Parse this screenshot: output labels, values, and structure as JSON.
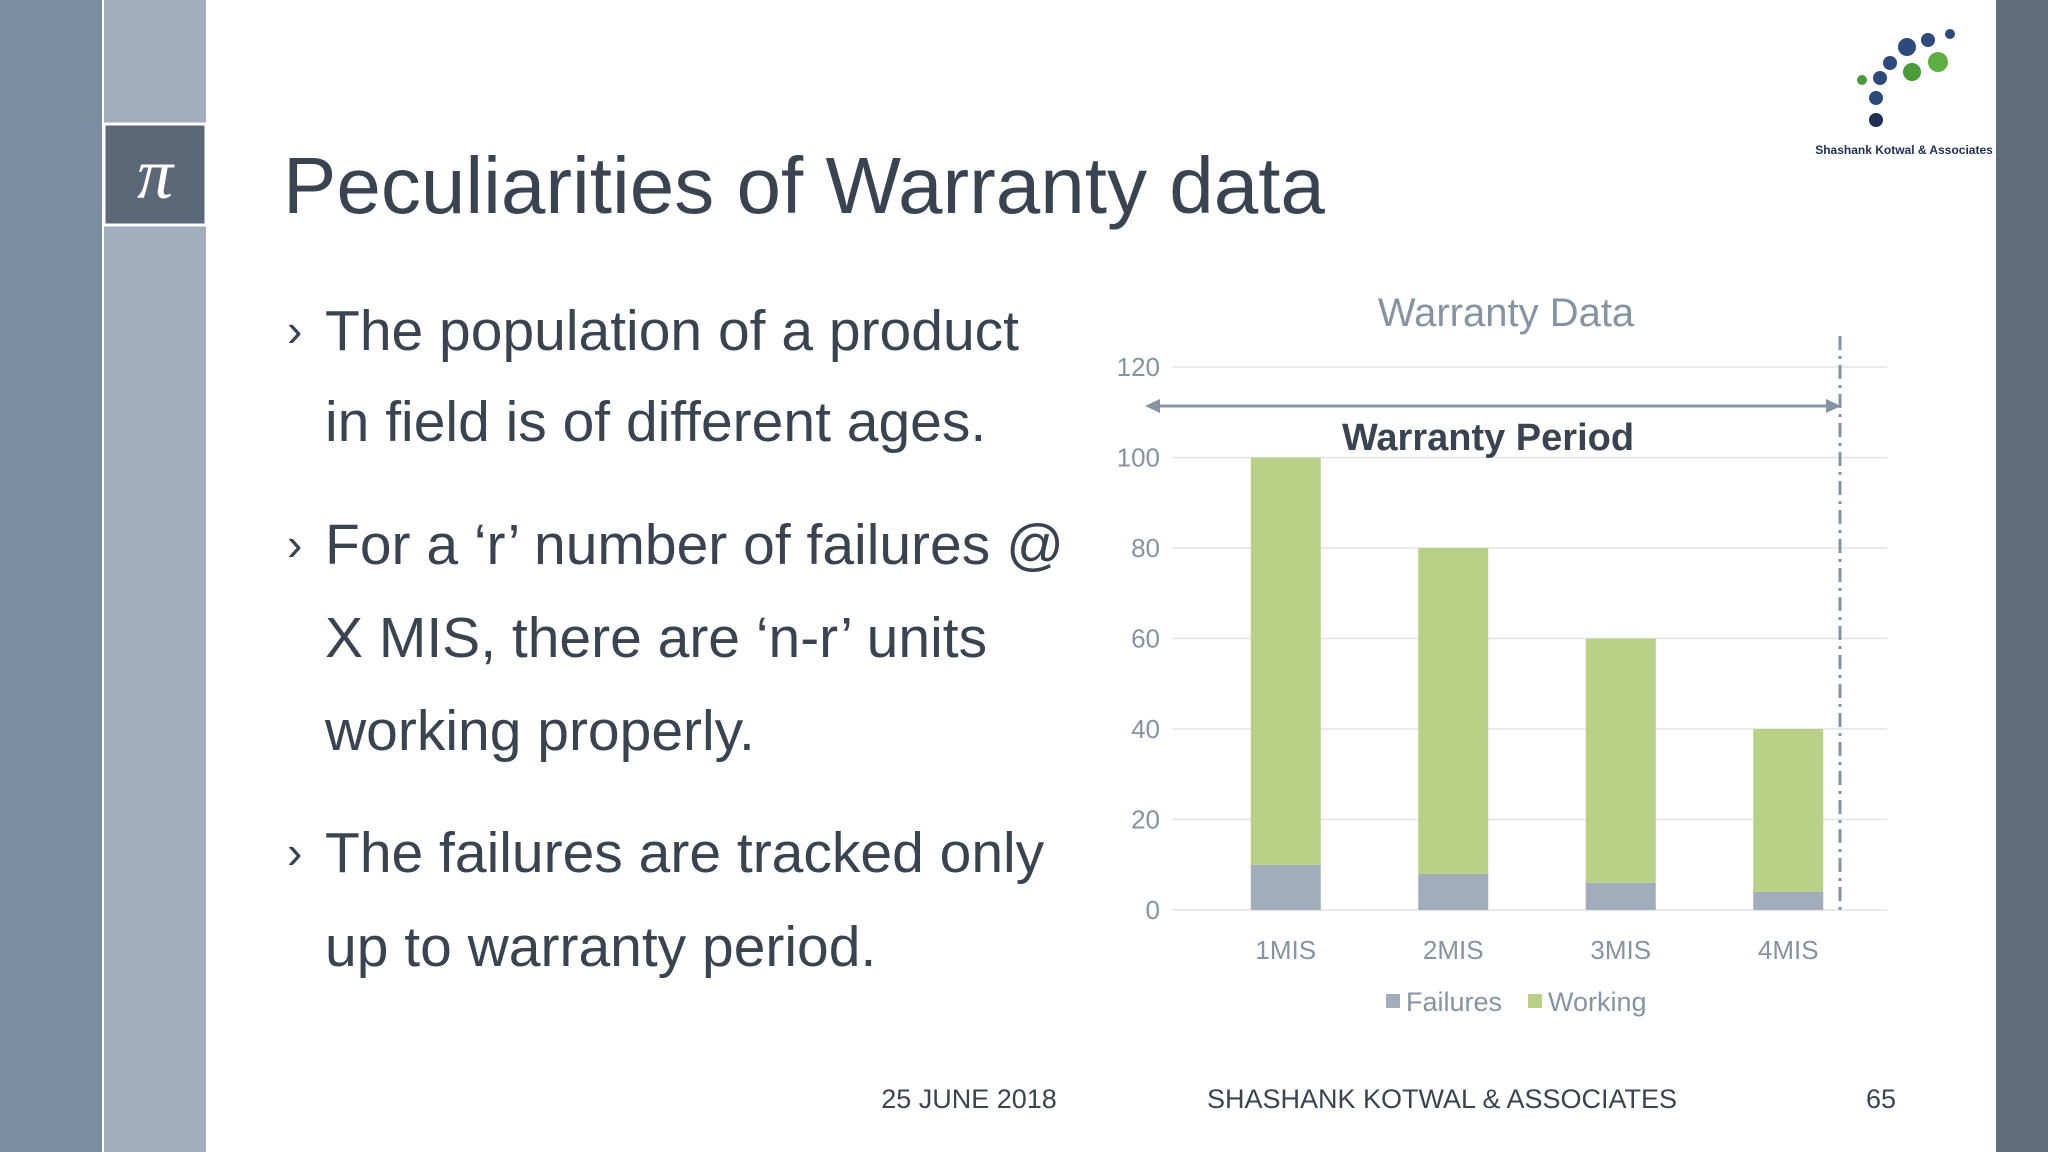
{
  "slide": {
    "icon": "π",
    "title": "Peculiarities of Warranty data",
    "bullets": [
      [
        "The population of a product",
        "in field is of different ages."
      ],
      [
        "For a ‘r’ number of failures @",
        "X MIS, there are ‘n-r’ units",
        "working properly."
      ],
      [
        "The failures are tracked only",
        "up to warranty period."
      ]
    ],
    "logo_text": "Shashank Kotwal & Associates",
    "footer": {
      "date": "25 JUNE 2018",
      "company": "SHASHANK KOTWAL & ASSOCIATES",
      "page": "65"
    }
  },
  "chart_data": {
    "type": "stacked_bar",
    "title": "Warranty Data",
    "annotation": "Warranty Period",
    "categories": [
      "1MIS",
      "2MIS",
      "3MIS",
      "4MIS"
    ],
    "series": [
      {
        "name": "Failures",
        "color": "#a2adbb",
        "values": [
          10,
          8,
          6,
          4
        ]
      },
      {
        "name": "Working",
        "color": "#b9d187",
        "values": [
          90,
          72,
          54,
          36
        ]
      }
    ],
    "ylim": [
      0,
      120
    ],
    "yticks": [
      0,
      20,
      40,
      60,
      80,
      100,
      120
    ],
    "grid": true,
    "legend": "bottom"
  }
}
